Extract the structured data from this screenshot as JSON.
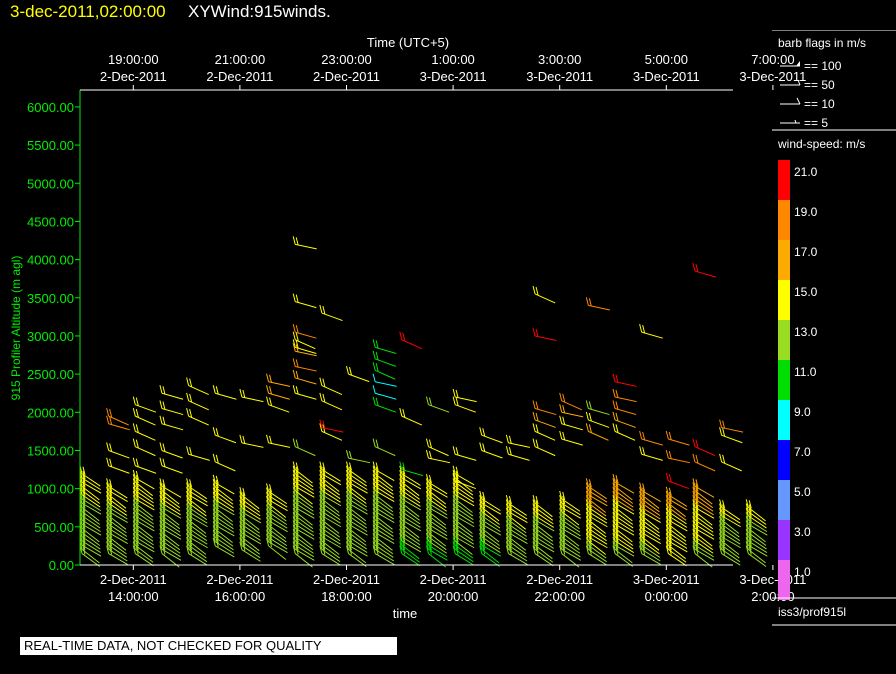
{
  "header": {
    "date_label": "3-dec-2011,02:00:00",
    "product_label": "XYWind:915winds."
  },
  "footer": {
    "notice": "REAL-TIME DATA, NOT CHECKED FOR QUALITY"
  },
  "legend": {
    "barb_title": "barb flags in m/s",
    "barb_items": [
      "== 100",
      "== 50",
      "== 10",
      "== 5"
    ],
    "speed_title": "wind-speed: m/s",
    "speed_levels": [
      {
        "label": "21.0",
        "color": "#ff0000"
      },
      {
        "label": "19.0",
        "color": "#ff8800"
      },
      {
        "label": "17.0",
        "color": "#ffaa00"
      },
      {
        "label": "15.0",
        "color": "#ffff00"
      },
      {
        "label": "13.0",
        "color": "#99dd22"
      },
      {
        "label": "11.0",
        "color": "#00dd00"
      },
      {
        "label": "9.0",
        "color": "#00ffff"
      },
      {
        "label": "7.0",
        "color": "#0000ff"
      },
      {
        "label": "5.0",
        "color": "#6699ff"
      },
      {
        "label": "3.0",
        "color": "#9933ff"
      },
      {
        "label": "1.0",
        "color": "#ee66ee"
      }
    ],
    "source": "iss3/prof915l"
  },
  "chart_data": {
    "type": "scatter",
    "title": "",
    "ylabel": "915 Profiler Altitude (m agl)",
    "xlabel": "time",
    "top_axis_label": "Time (UTC+5)",
    "ylim": [
      0,
      6200
    ],
    "yticks": [
      "0.00",
      "500.00",
      "1000.00",
      "1500.00",
      "2000.00",
      "2500.00",
      "3000.00",
      "3500.00",
      "4000.00",
      "4500.00",
      "5000.00",
      "5500.00",
      "6000.00"
    ],
    "x_start_hours": 13.0,
    "x_end_hours": 26.0,
    "bottom_ticks": [
      {
        "date": "2-Dec-2011",
        "time": "14:00:00",
        "hour": 14
      },
      {
        "date": "2-Dec-2011",
        "time": "16:00:00",
        "hour": 16
      },
      {
        "date": "2-Dec-2011",
        "time": "18:00:00",
        "hour": 18
      },
      {
        "date": "2-Dec-2011",
        "time": "20:00:00",
        "hour": 20
      },
      {
        "date": "2-Dec-2011",
        "time": "22:00:00",
        "hour": 22
      },
      {
        "date": "3-Dec-2011",
        "time": "0:00:00",
        "hour": 24
      },
      {
        "date": "3-Dec-2011",
        "time": "2:00:00",
        "hour": 26
      }
    ],
    "top_ticks": [
      {
        "time": "19:00:00",
        "date": "2-Dec-2011",
        "hour": 14
      },
      {
        "time": "21:00:00",
        "date": "2-Dec-2011",
        "hour": 16
      },
      {
        "time": "23:00:00",
        "date": "2-Dec-2011",
        "hour": 18
      },
      {
        "time": "1:00:00",
        "date": "3-Dec-2011",
        "hour": 20
      },
      {
        "time": "3:00:00",
        "date": "3-Dec-2011",
        "hour": 22
      },
      {
        "time": "5:00:00",
        "date": "3-Dec-2011",
        "hour": 24
      },
      {
        "time": "7:00:00",
        "date": "3-Dec-2011",
        "hour": 26
      }
    ],
    "profiles": [
      {
        "t": 13.0,
        "bot": 150,
        "top": 1200,
        "spd": 13
      },
      {
        "t": 13.5,
        "bot": 150,
        "top": 1050,
        "spd": 13
      },
      {
        "t": 14.0,
        "bot": 150,
        "top": 1150,
        "spd": 13
      },
      {
        "t": 14.5,
        "bot": 150,
        "top": 1050,
        "spd": 13
      },
      {
        "t": 15.0,
        "bot": 150,
        "top": 1050,
        "spd": 13
      },
      {
        "t": 15.5,
        "bot": 250,
        "top": 1100,
        "spd": 13
      },
      {
        "t": 16.0,
        "bot": 200,
        "top": 950,
        "spd": 13
      },
      {
        "t": 16.5,
        "bot": 250,
        "top": 1000,
        "spd": 13
      },
      {
        "t": 17.0,
        "bot": 150,
        "top": 1300,
        "spd": 13
      },
      {
        "t": 17.5,
        "bot": 150,
        "top": 1300,
        "spd": 13
      },
      {
        "t": 18.0,
        "bot": 150,
        "top": 1300,
        "spd": 13
      },
      {
        "t": 18.5,
        "bot": 150,
        "top": 1250,
        "spd": 13
      },
      {
        "t": 19.0,
        "bot": 150,
        "top": 1200,
        "spd": 12
      },
      {
        "t": 19.5,
        "bot": 150,
        "top": 1100,
        "spd": 12
      },
      {
        "t": 20.0,
        "bot": 150,
        "top": 1200,
        "spd": 12
      },
      {
        "t": 20.5,
        "bot": 150,
        "top": 900,
        "spd": 12
      },
      {
        "t": 21.0,
        "bot": 150,
        "top": 850,
        "spd": 13
      },
      {
        "t": 21.5,
        "bot": 150,
        "top": 850,
        "spd": 13
      },
      {
        "t": 22.0,
        "bot": 150,
        "top": 900,
        "spd": 13
      },
      {
        "t": 22.5,
        "bot": 150,
        "top": 1050,
        "spd": 14
      },
      {
        "t": 23.0,
        "bot": 150,
        "top": 1100,
        "spd": 14
      },
      {
        "t": 23.5,
        "bot": 150,
        "top": 1000,
        "spd": 14
      },
      {
        "t": 24.0,
        "bot": 150,
        "top": 950,
        "spd": 15
      },
      {
        "t": 24.5,
        "bot": 150,
        "top": 1050,
        "spd": 14
      },
      {
        "t": 25.0,
        "bot": 150,
        "top": 800,
        "spd": 13
      },
      {
        "t": 25.5,
        "bot": 150,
        "top": 800,
        "spd": 13
      }
    ],
    "upper_barbs": [
      {
        "t": 13.5,
        "z": 1950,
        "spd": 19
      },
      {
        "t": 13.5,
        "z": 1850,
        "spd": 19
      },
      {
        "t": 13.5,
        "z": 1500,
        "spd": 15
      },
      {
        "t": 13.5,
        "z": 1300,
        "spd": 15
      },
      {
        "t": 14.0,
        "z": 2100,
        "spd": 15
      },
      {
        "t": 14.0,
        "z": 1950,
        "spd": 15
      },
      {
        "t": 14.0,
        "z": 1750,
        "spd": 15
      },
      {
        "t": 14.0,
        "z": 1550,
        "spd": 15
      },
      {
        "t": 14.0,
        "z": 1300,
        "spd": 15
      },
      {
        "t": 14.5,
        "z": 2250,
        "spd": 15
      },
      {
        "t": 14.5,
        "z": 2050,
        "spd": 15
      },
      {
        "t": 14.5,
        "z": 1850,
        "spd": 15
      },
      {
        "t": 14.5,
        "z": 1500,
        "spd": 15
      },
      {
        "t": 14.5,
        "z": 1300,
        "spd": 15
      },
      {
        "t": 15.0,
        "z": 2350,
        "spd": 15
      },
      {
        "t": 15.0,
        "z": 2150,
        "spd": 15
      },
      {
        "t": 15.0,
        "z": 1950,
        "spd": 15
      },
      {
        "t": 15.0,
        "z": 1450,
        "spd": 15
      },
      {
        "t": 15.5,
        "z": 2250,
        "spd": 15
      },
      {
        "t": 15.5,
        "z": 1700,
        "spd": 15
      },
      {
        "t": 15.5,
        "z": 1350,
        "spd": 15
      },
      {
        "t": 16.0,
        "z": 2200,
        "spd": 15
      },
      {
        "t": 16.0,
        "z": 1600,
        "spd": 14
      },
      {
        "t": 16.5,
        "z": 2400,
        "spd": 16
      },
      {
        "t": 16.5,
        "z": 2250,
        "spd": 16
      },
      {
        "t": 16.5,
        "z": 2100,
        "spd": 15
      },
      {
        "t": 16.5,
        "z": 1600,
        "spd": 14
      },
      {
        "t": 17.0,
        "z": 2950,
        "spd": 15
      },
      {
        "t": 17.0,
        "z": 2850,
        "spd": 15
      },
      {
        "t": 17.0,
        "z": 4200,
        "spd": 15
      },
      {
        "t": 17.0,
        "z": 3450,
        "spd": 15
      },
      {
        "t": 17.0,
        "z": 3050,
        "spd": 19
      },
      {
        "t": 17.0,
        "z": 2800,
        "spd": 17
      },
      {
        "t": 17.0,
        "z": 2600,
        "spd": 19
      },
      {
        "t": 17.0,
        "z": 2450,
        "spd": 17
      },
      {
        "t": 17.0,
        "z": 2250,
        "spd": 15
      },
      {
        "t": 17.0,
        "z": 1550,
        "spd": 13
      },
      {
        "t": 17.5,
        "z": 2350,
        "spd": 15
      },
      {
        "t": 17.5,
        "z": 2150,
        "spd": 15
      },
      {
        "t": 17.5,
        "z": 1750,
        "spd": 15
      },
      {
        "t": 17.5,
        "z": 3300,
        "spd": 15
      },
      {
        "t": 17.5,
        "z": 1800,
        "spd": 21
      },
      {
        "t": 18.0,
        "z": 2500,
        "spd": 15
      },
      {
        "t": 18.0,
        "z": 1400,
        "spd": 13
      },
      {
        "t": 18.5,
        "z": 2850,
        "spd": 10
      },
      {
        "t": 18.5,
        "z": 2700,
        "spd": 10
      },
      {
        "t": 18.5,
        "z": 2550,
        "spd": 11
      },
      {
        "t": 18.5,
        "z": 2400,
        "spd": 9
      },
      {
        "t": 18.5,
        "z": 2250,
        "spd": 9
      },
      {
        "t": 18.5,
        "z": 2100,
        "spd": 11
      },
      {
        "t": 18.5,
        "z": 1550,
        "spd": 13
      },
      {
        "t": 19.0,
        "z": 2950,
        "spd": 21
      },
      {
        "t": 19.0,
        "z": 1950,
        "spd": 15
      },
      {
        "t": 19.0,
        "z": 1250,
        "spd": 11
      },
      {
        "t": 19.5,
        "z": 2100,
        "spd": 13
      },
      {
        "t": 19.5,
        "z": 1550,
        "spd": 15
      },
      {
        "t": 19.5,
        "z": 1400,
        "spd": 15
      },
      {
        "t": 20.0,
        "z": 2200,
        "spd": 15
      },
      {
        "t": 20.0,
        "z": 2100,
        "spd": 14
      },
      {
        "t": 20.0,
        "z": 1450,
        "spd": 15
      },
      {
        "t": 20.0,
        "z": 1100,
        "spd": 15
      },
      {
        "t": 20.5,
        "z": 1700,
        "spd": 15
      },
      {
        "t": 20.5,
        "z": 1500,
        "spd": 15
      },
      {
        "t": 21.0,
        "z": 1600,
        "spd": 15
      },
      {
        "t": 21.0,
        "z": 1450,
        "spd": 15
      },
      {
        "t": 21.5,
        "z": 3550,
        "spd": 15
      },
      {
        "t": 21.5,
        "z": 3000,
        "spd": 21
      },
      {
        "t": 21.5,
        "z": 2050,
        "spd": 19
      },
      {
        "t": 21.5,
        "z": 1900,
        "spd": 17
      },
      {
        "t": 21.5,
        "z": 1750,
        "spd": 15
      },
      {
        "t": 21.5,
        "z": 1550,
        "spd": 15
      },
      {
        "t": 22.0,
        "z": 2150,
        "spd": 19
      },
      {
        "t": 22.0,
        "z": 2000,
        "spd": 17
      },
      {
        "t": 22.0,
        "z": 1850,
        "spd": 15
      },
      {
        "t": 22.0,
        "z": 1650,
        "spd": 15
      },
      {
        "t": 22.5,
        "z": 3400,
        "spd": 19
      },
      {
        "t": 22.5,
        "z": 2050,
        "spd": 13
      },
      {
        "t": 22.5,
        "z": 1900,
        "spd": 15
      },
      {
        "t": 22.5,
        "z": 1750,
        "spd": 17
      },
      {
        "t": 23.0,
        "z": 2400,
        "spd": 21
      },
      {
        "t": 23.0,
        "z": 2200,
        "spd": 19
      },
      {
        "t": 23.0,
        "z": 2050,
        "spd": 19
      },
      {
        "t": 23.0,
        "z": 1900,
        "spd": 17
      },
      {
        "t": 23.0,
        "z": 1750,
        "spd": 15
      },
      {
        "t": 23.5,
        "z": 3050,
        "spd": 15
      },
      {
        "t": 23.5,
        "z": 1650,
        "spd": 19
      },
      {
        "t": 23.5,
        "z": 1450,
        "spd": 15
      },
      {
        "t": 24.0,
        "z": 1650,
        "spd": 19
      },
      {
        "t": 24.0,
        "z": 1400,
        "spd": 19
      },
      {
        "t": 24.0,
        "z": 1100,
        "spd": 21
      },
      {
        "t": 24.5,
        "z": 3850,
        "spd": 21
      },
      {
        "t": 24.5,
        "z": 1550,
        "spd": 21
      },
      {
        "t": 24.5,
        "z": 1350,
        "spd": 19
      },
      {
        "t": 25.0,
        "z": 1800,
        "spd": 19
      },
      {
        "t": 25.0,
        "z": 1700,
        "spd": 15
      },
      {
        "t": 25.0,
        "z": 1350,
        "spd": 15
      }
    ]
  }
}
